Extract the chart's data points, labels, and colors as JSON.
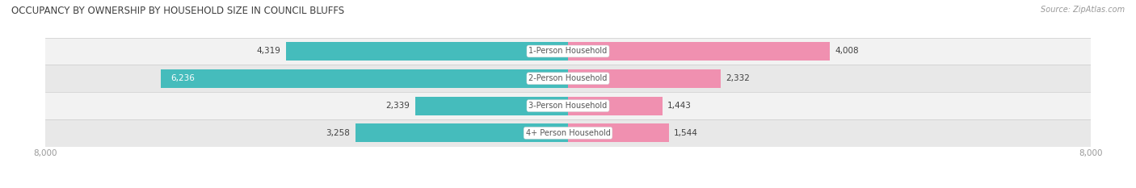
{
  "title": "OCCUPANCY BY OWNERSHIP BY HOUSEHOLD SIZE IN COUNCIL BLUFFS",
  "source": "Source: ZipAtlas.com",
  "categories": [
    "1-Person Household",
    "2-Person Household",
    "3-Person Household",
    "4+ Person Household"
  ],
  "owner_values": [
    4319,
    6236,
    2339,
    3258
  ],
  "renter_values": [
    4008,
    2332,
    1443,
    1544
  ],
  "max_val": 8000,
  "owner_color": "#45BCBC",
  "renter_color": "#F090B0",
  "row_bg_even": "#F2F2F2",
  "row_bg_odd": "#E8E8E8",
  "label_color": "#555555",
  "title_color": "#404040",
  "axis_label_color": "#999999",
  "center_label_color": "#555555",
  "value_label_owner_color": "#404040",
  "value_label_renter_color": "#404040",
  "figsize": [
    14.06,
    2.33
  ],
  "dpi": 100
}
